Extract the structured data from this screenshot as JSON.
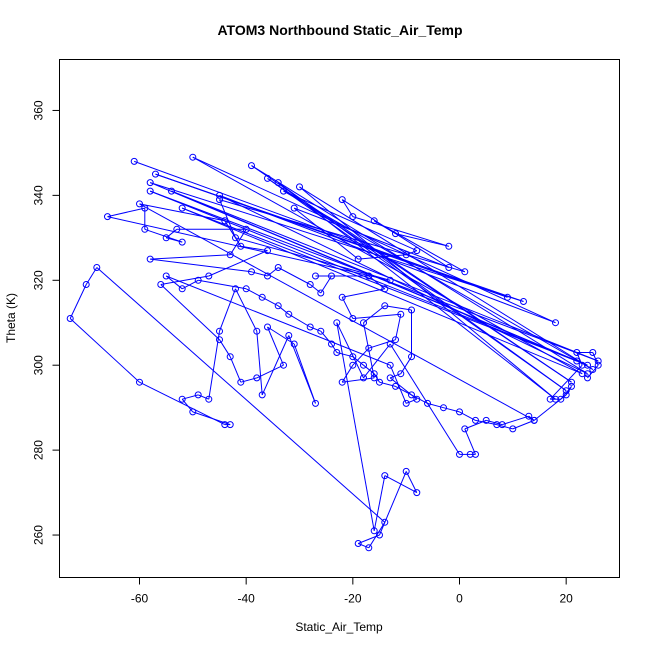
{
  "chart_data": {
    "type": "line",
    "title": "ATOM3 Northbound Static_Air_Temp",
    "xlabel": "Static_Air_Temp",
    "ylabel": "Theta (K)",
    "xlim": [
      -75,
      30
    ],
    "ylim": [
      250,
      372
    ],
    "xticks": [
      "-60",
      "-40",
      "-20",
      "0",
      "20"
    ],
    "yticks": [
      "260",
      "280",
      "300",
      "320",
      "340",
      "360"
    ],
    "grid": false,
    "series_color": "#0000ff",
    "marker": "open-circle",
    "series": [
      {
        "values": [
          [
            -61,
            348
          ],
          [
            9,
            316
          ],
          [
            -57,
            345
          ],
          [
            12,
            315
          ],
          [
            -58,
            343
          ],
          [
            22,
            301
          ],
          [
            -58,
            341
          ],
          [
            26,
            301
          ],
          [
            -54,
            341
          ],
          [
            24,
            300
          ],
          [
            -52,
            337
          ],
          [
            23,
            298
          ],
          [
            -50,
            349
          ],
          [
            18,
            310
          ],
          [
            -45,
            340
          ],
          [
            24,
            298
          ],
          [
            -39,
            347
          ],
          [
            21,
            296
          ],
          [
            -36,
            344
          ],
          [
            20,
            294
          ],
          [
            -34,
            343
          ],
          [
            18,
            292
          ],
          [
            -30,
            342
          ],
          [
            25,
            299
          ],
          [
            -33,
            341
          ],
          [
            -8,
            327
          ],
          [
            -10,
            326
          ],
          [
            -19,
            325
          ],
          [
            -31,
            337
          ],
          [
            -2,
            323
          ],
          [
            -22,
            339
          ],
          [
            -20,
            335
          ],
          [
            -2,
            328
          ],
          [
            -12,
            331
          ],
          [
            -16,
            334
          ],
          [
            1,
            322
          ],
          [
            -45,
            339
          ],
          [
            -42,
            330
          ],
          [
            -13,
            320
          ],
          [
            -66,
            335
          ],
          [
            -59,
            337
          ],
          [
            -59,
            332
          ],
          [
            -52,
            329
          ],
          [
            -55,
            330
          ],
          [
            -53,
            332
          ],
          [
            -40,
            332
          ],
          [
            -43,
            326
          ],
          [
            -58,
            325
          ],
          [
            -39,
            322
          ],
          [
            -36,
            321
          ],
          [
            -34,
            323
          ],
          [
            -28,
            319
          ],
          [
            -26,
            317
          ],
          [
            -24,
            321
          ],
          [
            -27,
            321
          ],
          [
            -17,
            321
          ],
          [
            -14,
            318
          ],
          [
            -22,
            316
          ],
          [
            -20,
            311
          ],
          [
            -11,
            312
          ],
          [
            -12,
            306
          ],
          [
            -17,
            304
          ],
          [
            -20,
            300
          ],
          [
            -22,
            296
          ],
          [
            -16,
            297
          ],
          [
            -18,
            310
          ],
          [
            -14,
            314
          ],
          [
            -9,
            313
          ],
          [
            -9,
            302
          ],
          [
            -11,
            298
          ],
          [
            -13,
            297
          ],
          [
            -8,
            292
          ],
          [
            -10,
            291
          ],
          [
            -13,
            300
          ],
          [
            -55,
            321
          ],
          [
            -52,
            318
          ],
          [
            -49,
            320
          ],
          [
            -40,
            318
          ],
          [
            -37,
            316
          ],
          [
            -34,
            314
          ],
          [
            -32,
            312
          ],
          [
            -28,
            309
          ],
          [
            -26,
            308
          ],
          [
            -24,
            305
          ],
          [
            -23,
            303
          ],
          [
            -20,
            302
          ],
          [
            -18,
            300
          ],
          [
            -16,
            298
          ],
          [
            -15,
            296
          ],
          [
            -12,
            295
          ],
          [
            -9,
            293
          ],
          [
            -6,
            291
          ],
          [
            -3,
            290
          ],
          [
            0,
            289
          ],
          [
            3,
            287
          ],
          [
            7,
            286
          ],
          [
            10,
            285
          ],
          [
            14,
            287
          ],
          [
            -60,
            338
          ],
          [
            -44,
            334
          ],
          [
            -41,
            328
          ],
          [
            -36,
            327
          ],
          [
            -47,
            321
          ],
          [
            -56,
            319
          ],
          [
            -45,
            306
          ],
          [
            -43,
            302
          ],
          [
            -41,
            296
          ],
          [
            -38,
            297
          ],
          [
            -33,
            300
          ],
          [
            -36,
            309
          ],
          [
            -31,
            305
          ],
          [
            -27,
            291
          ],
          [
            -32,
            307
          ],
          [
            -37,
            293
          ],
          [
            -38,
            308
          ],
          [
            -42,
            318
          ],
          [
            -45,
            308
          ],
          [
            -47,
            292
          ],
          [
            -49,
            293
          ],
          [
            -52,
            292
          ],
          [
            -50,
            289
          ],
          [
            -43,
            286
          ],
          [
            -44,
            286
          ],
          [
            -60,
            296
          ],
          [
            -73,
            311
          ],
          [
            -70,
            319
          ],
          [
            -68,
            323
          ],
          [
            -14,
            263
          ],
          [
            -17,
            257
          ],
          [
            -19,
            258
          ],
          [
            -15,
            260
          ],
          [
            -10,
            275
          ],
          [
            -8,
            270
          ],
          [
            -14,
            274
          ],
          [
            -16,
            261
          ],
          [
            -23,
            310
          ],
          [
            -18,
            297
          ],
          [
            -13,
            305
          ],
          [
            0,
            279
          ],
          [
            2,
            279
          ],
          [
            3,
            279
          ],
          [
            1,
            285
          ],
          [
            5,
            287
          ],
          [
            8,
            286
          ],
          [
            13,
            288
          ],
          [
            14,
            287
          ],
          [
            20,
            293
          ],
          [
            21,
            295
          ],
          [
            19,
            292
          ],
          [
            17,
            292
          ],
          [
            23,
            300
          ],
          [
            22,
            303
          ],
          [
            25,
            303
          ],
          [
            26,
            300
          ],
          [
            24,
            297
          ]
        ]
      }
    ]
  }
}
